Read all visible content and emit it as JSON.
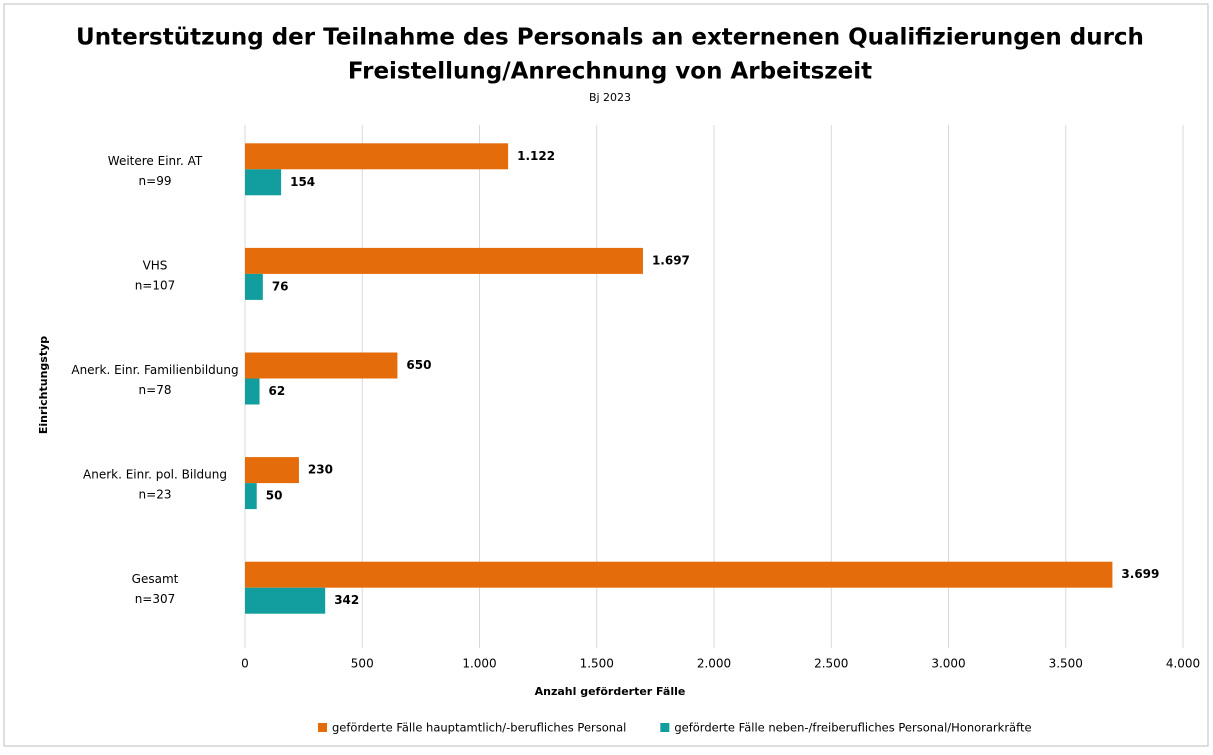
{
  "chart_data": {
    "type": "bar",
    "orientation": "horizontal",
    "title": [
      "Unterstützung der Teilnahme des Personals an externenen Qualifizierungen durch",
      "Freistellung/Anrechnung von Arbeitszeit"
    ],
    "subtitle": "Bj 2023",
    "x_label": "Anzahl geförderter Fälle",
    "y_label": "Einrichtungstyp",
    "categories": [
      [
        "Weitere Einr. AT",
        "n=99"
      ],
      [
        "VHS",
        "n=107"
      ],
      [
        "Anerk. Einr. Familienbildung",
        "n=78"
      ],
      [
        "Anerk. Einr. pol. Bildung",
        "n=23"
      ],
      [
        "Gesamt",
        "n=307"
      ]
    ],
    "series": [
      {
        "name": "geförderte Fälle hauptamtlich/-berufliches Personal",
        "color": "#e46c0a",
        "values": [
          1122,
          1697,
          650,
          230,
          3699
        ],
        "value_labels": [
          "1.122",
          "1.697",
          "650",
          "230",
          "3.699"
        ]
      },
      {
        "name": "geförderte Fälle neben-/freiberufliches Personal/Honorarkräfte",
        "color": "#129e9e",
        "values": [
          154,
          76,
          62,
          50,
          342
        ],
        "value_labels": [
          "154",
          "76",
          "62",
          "50",
          "342"
        ]
      }
    ],
    "xlim": [
      0,
      4000
    ],
    "xticks": [
      0,
      500,
      {
        "value": 1000,
        "label": "1.000"
      },
      {
        "value": 1500,
        "label": "1.500"
      },
      {
        "value": 2000,
        "label": "2.000"
      },
      {
        "value": 2500,
        "label": "2.500"
      },
      {
        "value": 3000,
        "label": "3.000"
      },
      {
        "value": 3500,
        "label": "3.500"
      },
      {
        "value": 4000,
        "label": "4.000"
      }
    ],
    "grid": true,
    "legend": "bottom"
  }
}
